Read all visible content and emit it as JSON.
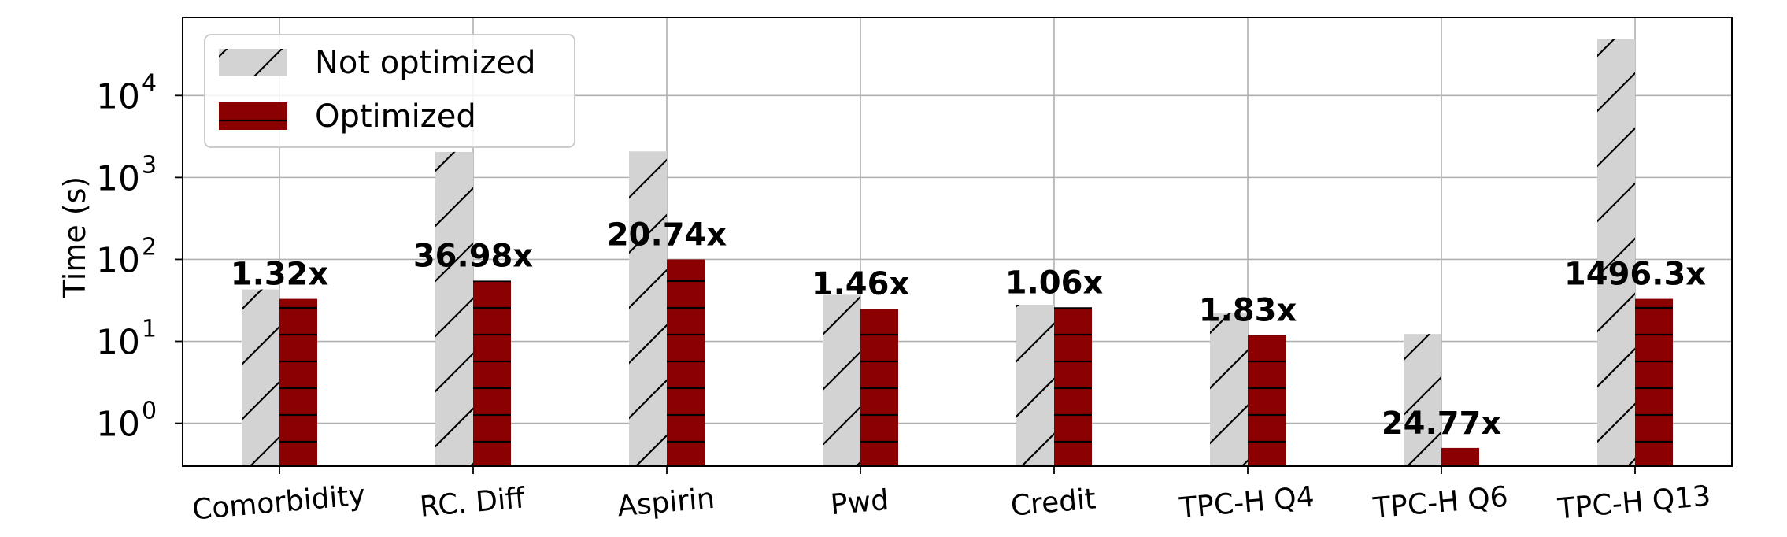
{
  "chart_data": {
    "type": "bar",
    "title": "",
    "xlabel": "",
    "ylabel": "Time (s)",
    "yscale": "log",
    "ylim": [
      0.3,
      90000
    ],
    "yticks": [
      {
        "value": 1,
        "base": "10",
        "exp": "0"
      },
      {
        "value": 10,
        "base": "10",
        "exp": "1"
      },
      {
        "value": 100,
        "base": "10",
        "exp": "2"
      },
      {
        "value": 1000,
        "base": "10",
        "exp": "3"
      },
      {
        "value": 10000,
        "base": "10",
        "exp": "4"
      }
    ],
    "grid": true,
    "legend_position": "top-left",
    "categories": [
      "Comorbidity",
      "RC. Diff",
      "Aspirin",
      "Pwd",
      "Credit",
      "TPC-H Q4",
      "TPC-H Q6",
      "TPC-H Q13"
    ],
    "series": [
      {
        "name": "Not optimized",
        "color": "#d3d3d3",
        "hatch": "diagonal",
        "values": [
          43,
          2050,
          2080,
          37,
          28,
          22,
          12.3,
          49000
        ]
      },
      {
        "name": "Optimized",
        "color": "#8b0000",
        "hatch": "horizontal",
        "values": [
          33,
          55,
          100,
          25,
          26,
          12,
          0.5,
          33
        ]
      }
    ],
    "annotations": [
      "1.32x",
      "36.98x",
      "20.74x",
      "1.46x",
      "1.06x",
      "1.83x",
      "24.77x",
      "1496.3x"
    ]
  }
}
